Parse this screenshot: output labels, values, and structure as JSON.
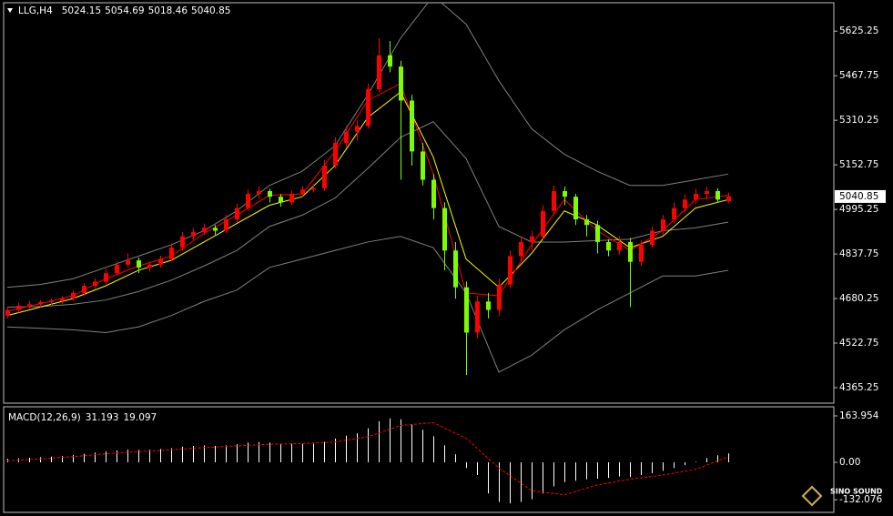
{
  "chart_data": [
    {
      "type": "candlestick",
      "symbol": "LLG,H4",
      "up_color": "#ff0000",
      "down_color": "#7cfc00",
      "ylim": [
        4310.6,
        5725.6
      ],
      "yticks": [
        4365.25,
        4522.75,
        4680.25,
        4837.75,
        4995.25,
        5152.75,
        5310.25,
        5467.75,
        5625.25
      ],
      "ohlc": [
        [
          4620,
          4650,
          4610,
          4640
        ],
        [
          4640,
          4665,
          4630,
          4655
        ],
        [
          4655,
          4672,
          4645,
          4660
        ],
        [
          4660,
          4675,
          4650,
          4668
        ],
        [
          4668,
          4680,
          4658,
          4672
        ],
        [
          4672,
          4690,
          4662,
          4680
        ],
        [
          4680,
          4710,
          4672,
          4700
        ],
        [
          4700,
          4735,
          4690,
          4725
        ],
        [
          4725,
          4752,
          4715,
          4740
        ],
        [
          4740,
          4785,
          4730,
          4770
        ],
        [
          4770,
          4812,
          4760,
          4800
        ],
        [
          4800,
          4840,
          4790,
          4815
        ],
        [
          4815,
          4825,
          4770,
          4790
        ],
        [
          4790,
          4810,
          4775,
          4800
        ],
        [
          4800,
          4832,
          4790,
          4820
        ],
        [
          4820,
          4875,
          4812,
          4860
        ],
        [
          4860,
          4915,
          4850,
          4900
        ],
        [
          4900,
          4930,
          4888,
          4915
        ],
        [
          4915,
          4945,
          4905,
          4930
        ],
        [
          4930,
          4940,
          4905,
          4920
        ],
        [
          4920,
          4975,
          4912,
          4960
        ],
        [
          4960,
          5015,
          4950,
          5000
        ],
        [
          5000,
          5065,
          4990,
          5050
        ],
        [
          5050,
          5075,
          5035,
          5060
        ],
        [
          5060,
          5068,
          5020,
          5040
        ],
        [
          5040,
          5050,
          5005,
          5020
        ],
        [
          5020,
          5062,
          5012,
          5050
        ],
        [
          5050,
          5078,
          5040,
          5065
        ],
        [
          5065,
          5085,
          5055,
          5070
        ],
        [
          5070,
          5170,
          5060,
          5150
        ],
        [
          5150,
          5250,
          5140,
          5230
        ],
        [
          5230,
          5290,
          5215,
          5270
        ],
        [
          5270,
          5310,
          5240,
          5290
        ],
        [
          5290,
          5440,
          5280,
          5420
        ],
        [
          5420,
          5600,
          5410,
          5540
        ],
        [
          5540,
          5590,
          5480,
          5500
        ],
        [
          5500,
          5520,
          5100,
          5380
        ],
        [
          5380,
          5400,
          5150,
          5200
        ],
        [
          5200,
          5230,
          5080,
          5100
        ],
        [
          5100,
          5120,
          4960,
          5000
        ],
        [
          5000,
          5020,
          4780,
          4850
        ],
        [
          4850,
          4880,
          4680,
          4720
        ],
        [
          4720,
          4740,
          4410,
          4560
        ],
        [
          4560,
          4690,
          4540,
          4670
        ],
        [
          4670,
          4700,
          4610,
          4640
        ],
        [
          4640,
          4750,
          4620,
          4730
        ],
        [
          4730,
          4850,
          4715,
          4830
        ],
        [
          4830,
          4900,
          4810,
          4880
        ],
        [
          4880,
          4920,
          4850,
          4900
        ],
        [
          4900,
          5010,
          4885,
          4990
        ],
        [
          4990,
          5080,
          4975,
          5060
        ],
        [
          5060,
          5075,
          5010,
          5040
        ],
        [
          5040,
          5050,
          4940,
          4960
        ],
        [
          4960,
          4975,
          4900,
          4940
        ],
        [
          4940,
          4955,
          4840,
          4880
        ],
        [
          4880,
          4890,
          4830,
          4850
        ],
        [
          4850,
          4900,
          4835,
          4880
        ],
        [
          4880,
          4895,
          4650,
          4810
        ],
        [
          4810,
          4885,
          4795,
          4870
        ],
        [
          4870,
          4935,
          4860,
          4920
        ],
        [
          4920,
          4975,
          4905,
          4960
        ],
        [
          4960,
          5020,
          4945,
          5000
        ],
        [
          5000,
          5048,
          4985,
          5030
        ],
        [
          5030,
          5068,
          5015,
          5050
        ],
        [
          5050,
          5075,
          5030,
          5060
        ],
        [
          5060,
          5070,
          5020,
          5030
        ],
        [
          5024.15,
          5054.69,
          5018.46,
          5040.85
        ]
      ],
      "line_x": [
        0,
        3,
        6,
        9,
        12,
        15,
        18,
        21,
        24,
        27,
        30,
        33,
        36,
        39,
        42,
        45,
        48,
        51,
        54,
        57,
        60,
        63,
        66
      ],
      "lines": [
        {
          "color": "#808080",
          "values": [
            4720,
            4730,
            4750,
            4790,
            4830,
            4870,
            4920,
            4990,
            5080,
            5130,
            5220,
            5400,
            5600,
            5750,
            5650,
            5450,
            5280,
            5190,
            5130,
            5080,
            5080,
            5100,
            5120
          ]
        },
        {
          "color": "#808080",
          "values": [
            4650,
            4652,
            4660,
            4675,
            4705,
            4745,
            4795,
            4850,
            4935,
            4975,
            5035,
            5140,
            5250,
            5305,
            5175,
            4935,
            4880,
            4880,
            4885,
            4890,
            4920,
            4930,
            4950
          ]
        },
        {
          "color": "#808080",
          "values": [
            4580,
            4575,
            4570,
            4560,
            4580,
            4620,
            4670,
            4710,
            4790,
            4820,
            4850,
            4880,
            4900,
            4860,
            4700,
            4420,
            4480,
            4570,
            4640,
            4700,
            4760,
            4760,
            4780
          ]
        },
        {
          "color": "#ffff00",
          "values": [
            4620,
            4650,
            4680,
            4725,
            4780,
            4815,
            4880,
            4945,
            5010,
            5040,
            5150,
            5320,
            5410,
            5180,
            4820,
            4720,
            4840,
            4990,
            4940,
            4860,
            4900,
            5000,
            5030
          ]
        },
        {
          "color": "#ff0000",
          "values": [
            4635,
            4662,
            4690,
            4750,
            4795,
            4830,
            4910,
            4975,
            5045,
            5050,
            5200,
            5380,
            5440,
            5120,
            4700,
            4690,
            4870,
            5030,
            4920,
            4850,
            4920,
            5030,
            5045
          ]
        }
      ],
      "watermark": "SINO SOUND"
    },
    {
      "type": "macd",
      "label": "MACD(12,26,9)",
      "ylim": [
        -176.8,
        196.1
      ],
      "yticks": [
        163.954,
        {
          "value": 0,
          "label": "0.00"
        },
        -132.076
      ],
      "hist_color": "#ffffff",
      "signal_color": "#ff0000",
      "values": [
        12,
        14,
        16,
        18,
        20,
        22,
        26,
        30,
        34,
        38,
        42,
        45,
        44,
        45,
        47,
        50,
        55,
        58,
        60,
        58,
        60,
        64,
        70,
        72,
        70,
        66,
        66,
        66,
        66,
        72,
        84,
        94,
        102,
        120,
        145,
        155,
        152,
        135,
        115,
        92,
        60,
        28,
        -20,
        -45,
        -110,
        -140,
        -145,
        -140,
        -130,
        -110,
        -85,
        -70,
        -65,
        -60,
        -58,
        -55,
        -50,
        -52,
        -45,
        -38,
        -30,
        -20,
        -10,
        2,
        15,
        25,
        31.193
      ],
      "signal_x": [
        0,
        3,
        6,
        9,
        12,
        15,
        18,
        21,
        24,
        27,
        30,
        33,
        36,
        39,
        42,
        45,
        48,
        51,
        54,
        57,
        60,
        63,
        66
      ],
      "signal": [
        5,
        12,
        20,
        30,
        38,
        44,
        52,
        58,
        64,
        66,
        72,
        90,
        130,
        140,
        85,
        -20,
        -100,
        -115,
        -80,
        -60,
        -45,
        -25,
        19.097
      ]
    }
  ]
}
